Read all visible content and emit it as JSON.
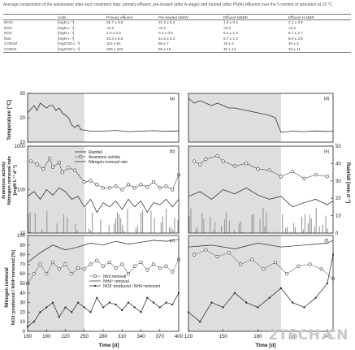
{
  "table": {
    "caption": "Average composition of the wastewater after each treatment step: primary effluent, pre-treated (after A-stage) and treated (after PN/A) effluents over the 5 months of operation at 15 °C",
    "headers": [
      "",
      "Units",
      "Primary effluent",
      "Pre-treated MWW",
      "Effluent MBBR",
      "Effluent H-MBR"
    ],
    "rows": [
      [
        "NH4+",
        "[mgN·L⁻¹]",
        "25.7 ± 6.8",
        "21.2 ± 5.2",
        "1.8 ± 0.4",
        "2.1 ± 0.9"
      ],
      [
        "NO2⁻",
        "[mgN·L⁻¹]",
        "<0.2",
        "<0.2",
        "<0.2",
        "<0.2"
      ],
      [
        "NO3⁻",
        "[mgN·L⁻¹]",
        "1.3 ± 0.3",
        "0.4 ± 0.5",
        "5.3 ± 1.4",
        "5.7 ± 2.7"
      ],
      [
        "Ntot",
        "[mgN·L⁻¹]",
        "33.3 ± 6.8",
        "21.8 ± 5.2",
        "5.7 ± 1.3",
        "8.0 ± 2.6"
      ],
      [
        "CODsol",
        "[mgCOD·L⁻¹]",
        "102 ± 61",
        "66 ± 7",
        "18 ± 3",
        "20 ± 4"
      ],
      [
        "CODtot",
        "[mgCOD·L⁻¹]",
        "333 ± 222",
        "69 ± 18",
        "40 ± 13",
        "33 ± 11"
      ]
    ]
  },
  "figure": {
    "panel_labels": [
      "(a)",
      "(d)",
      "(b)",
      "(e)",
      "(c)",
      "(f)"
    ],
    "y_axis_labels": {
      "temperature": "Temperature [°C]",
      "anammox_line1": "Anammox activity",
      "anammox_line2": "Nitrogen removal rate",
      "anammox_line3": "[mgN L⁻¹ d⁻¹]",
      "rainfall": "Rainfall [mm d⁻¹]",
      "removal_line1": "Nitrogen removal",
      "removal_line2": "NO3⁻produced / NH4⁺removed [%]"
    },
    "x_axis_label": "Time [d]",
    "x_ticks_left": [
      "160",
      "190",
      "220",
      "250",
      "280",
      "310",
      "340",
      "370",
      "400"
    ],
    "x_ticks_right": [
      "120",
      "150",
      "180",
      "210",
      "240"
    ],
    "y_ticks_temp": [
      "10",
      "20",
      "30"
    ],
    "y_ticks_act": [
      "1000",
      "100",
      "10"
    ],
    "y_ticks_rain": [
      "0",
      "10",
      "20",
      "30",
      "40",
      "50"
    ],
    "y_ticks_rem": [
      "0",
      "10",
      "20",
      "30",
      "40",
      "50",
      "60",
      "70",
      "80",
      "90",
      "100"
    ],
    "legend_b": [
      "Rainfall",
      "Anammox activity",
      "Nitrogen removal rate"
    ],
    "legend_c": [
      "Ntot removal",
      "NH4⁺ removal",
      "NO3⁻produced / NH4⁺removed"
    ]
  },
  "watermark": "2TECH.CN",
  "chart_data": [
    {
      "type": "line",
      "panel": "a",
      "xlabel": "",
      "ylabel": "Temperature [°C]",
      "xlim": [
        160,
        400
      ],
      "ylim": [
        10,
        30
      ],
      "series": [
        {
          "x": [
            160,
            170,
            175,
            180,
            185,
            190,
            195,
            200,
            205,
            210,
            215,
            220,
            225,
            230,
            235,
            240,
            245,
            250,
            260,
            280,
            300,
            320,
            340,
            360,
            380,
            400
          ],
          "y": [
            22,
            25,
            23,
            26,
            25,
            24,
            25,
            25,
            23,
            24,
            22,
            21,
            20,
            17,
            16,
            17,
            15,
            15,
            14.5,
            14.5,
            14.8,
            14.3,
            14.5,
            14.7,
            14.4,
            14.6
          ]
        }
      ]
    },
    {
      "type": "line",
      "panel": "d",
      "xlabel": "",
      "ylabel": "",
      "xlim": [
        120,
        245
      ],
      "ylim": [
        10,
        30
      ],
      "series": [
        {
          "x": [
            120,
            125,
            130,
            135,
            140,
            145,
            150,
            155,
            160,
            170,
            180,
            190,
            195,
            200,
            210,
            220,
            230,
            240,
            245
          ],
          "y": [
            28,
            26,
            27,
            26,
            25,
            26,
            25,
            24,
            24,
            23,
            22,
            21,
            20,
            14,
            14.5,
            14.3,
            14.6,
            14.4,
            14.5
          ]
        }
      ]
    },
    {
      "type": "line",
      "panel": "b",
      "xlabel": "",
      "ylabel": "Anammox activity / Nitrogen removal rate [mgN L⁻¹ d⁻¹]",
      "xlim": [
        160,
        400
      ],
      "ylim": [
        10,
        1000
      ],
      "log_y": true,
      "series": [
        {
          "name": "Anammox activity",
          "x": [
            165,
            175,
            185,
            195,
            200,
            210,
            215,
            225,
            235,
            250,
            260,
            270,
            280,
            290,
            300,
            310,
            320,
            330,
            340,
            350,
            360,
            370,
            380,
            390,
            400
          ],
          "y": [
            450,
            380,
            300,
            520,
            330,
            420,
            250,
            320,
            280,
            150,
            160,
            130,
            110,
            110,
            120,
            100,
            130,
            110,
            130,
            115,
            150,
            110,
            120,
            100,
            220
          ]
        },
        {
          "name": "Nitrogen removal rate",
          "x": [
            160,
            170,
            180,
            190,
            200,
            210,
            220,
            230,
            240,
            250,
            260,
            270,
            280,
            290,
            300,
            310,
            320,
            330,
            340,
            350,
            360,
            370,
            380,
            390,
            400
          ],
          "y": [
            70,
            90,
            60,
            100,
            75,
            110,
            90,
            60,
            70,
            40,
            60,
            30,
            50,
            40,
            55,
            35,
            60,
            40,
            55,
            30,
            50,
            45,
            60,
            40,
            60
          ]
        }
      ]
    },
    {
      "type": "line",
      "panel": "e",
      "xlabel": "",
      "ylabel": "Rainfall [mm d⁻¹]",
      "xlim": [
        120,
        245
      ],
      "ylim": [
        10,
        1000
      ],
      "log_y": true,
      "series": [
        {
          "name": "Anammox activity",
          "x": [
            125,
            130,
            135,
            145,
            150,
            160,
            170,
            180,
            190,
            200,
            210,
            220,
            230,
            240
          ],
          "y": [
            450,
            380,
            500,
            600,
            450,
            350,
            400,
            300,
            280,
            200,
            260,
            180,
            220,
            200
          ]
        },
        {
          "name": "Nitrogen removal rate",
          "x": [
            120,
            130,
            140,
            150,
            160,
            170,
            180,
            190,
            200,
            210,
            220,
            230,
            240,
            245
          ],
          "y": [
            70,
            90,
            60,
            100,
            80,
            110,
            75,
            60,
            70,
            40,
            50,
            60,
            45,
            55
          ]
        }
      ]
    },
    {
      "type": "line",
      "panel": "c",
      "xlabel": "Time [d]",
      "ylabel": "Nitrogen removal / NO3⁻produced / NH4⁺removed [%]",
      "xlim": [
        160,
        400
      ],
      "ylim": [
        0,
        100
      ],
      "series": [
        {
          "name": "Ntot removal",
          "x": [
            160,
            170,
            180,
            190,
            200,
            210,
            220,
            230,
            240,
            250,
            260,
            270,
            280,
            290,
            300,
            310,
            320,
            330,
            340,
            350,
            360,
            370,
            380,
            390,
            400
          ],
          "y": [
            50,
            60,
            70,
            60,
            72,
            65,
            70,
            60,
            66,
            65,
            70,
            74,
            68,
            72,
            66,
            70,
            60,
            68,
            72,
            64,
            70,
            66,
            68,
            62,
            75
          ]
        },
        {
          "name": "NH4⁺ removal",
          "x": [
            160,
            180,
            200,
            220,
            240,
            260,
            280,
            300,
            320,
            340,
            360,
            380,
            400
          ],
          "y": [
            72,
            82,
            90,
            85,
            88,
            92,
            90,
            94,
            91,
            93,
            95,
            94,
            96
          ]
        },
        {
          "name": "NO3⁻produced / NH4⁺removed",
          "x": [
            160,
            170,
            180,
            190,
            200,
            210,
            220,
            230,
            240,
            250,
            260,
            270,
            280,
            290,
            300,
            310,
            320,
            330,
            340,
            350,
            360,
            370,
            380,
            390,
            400
          ],
          "y": [
            5,
            10,
            20,
            25,
            30,
            15,
            25,
            20,
            30,
            25,
            20,
            35,
            25,
            30,
            28,
            22,
            30,
            25,
            20,
            35,
            30,
            25,
            30,
            28,
            40
          ]
        }
      ]
    },
    {
      "type": "line",
      "panel": "f",
      "xlabel": "Time [d]",
      "ylabel": "",
      "xlim": [
        120,
        245
      ],
      "ylim": [
        0,
        100
      ],
      "series": [
        {
          "name": "Ntot removal",
          "x": [
            125,
            135,
            145,
            155,
            165,
            175,
            185,
            195,
            205,
            215,
            225,
            235,
            245
          ],
          "y": [
            80,
            85,
            78,
            82,
            70,
            75,
            65,
            72,
            60,
            68,
            70,
            65,
            55
          ]
        },
        {
          "name": "NH4⁺ removal",
          "x": [
            120,
            140,
            160,
            180,
            200,
            220,
            240,
            245
          ],
          "y": [
            88,
            90,
            86,
            92,
            88,
            90,
            92,
            95
          ]
        },
        {
          "name": "NO3⁻produced / NH4⁺removed",
          "x": [
            120,
            130,
            140,
            150,
            160,
            170,
            180,
            190,
            200,
            210,
            220,
            230,
            240,
            245
          ],
          "y": [
            20,
            10,
            30,
            25,
            40,
            30,
            25,
            35,
            45,
            30,
            25,
            35,
            50,
            80
          ]
        }
      ]
    }
  ]
}
